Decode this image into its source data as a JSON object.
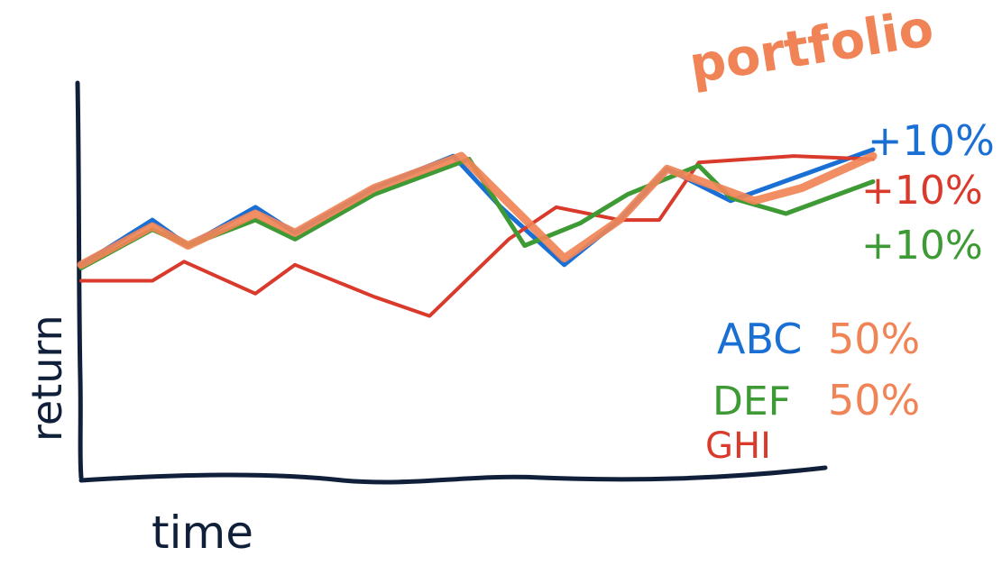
{
  "chart_data": {
    "type": "line",
    "title": "",
    "xlabel": "time",
    "ylabel": "return",
    "xlim": [
      0,
      100
    ],
    "ylim": [
      0,
      100
    ],
    "grid": false,
    "portfolio_label": "portfolio",
    "series": [
      {
        "name": "ABC",
        "color": "#1a6fd4",
        "x": [
          0,
          9,
          13.5,
          22,
          27,
          37,
          47,
          53,
          61,
          68,
          74,
          82,
          91,
          100
        ],
        "y": [
          44,
          58,
          50,
          62,
          54,
          68,
          78,
          62,
          44,
          58,
          74,
          64,
          72,
          80
        ],
        "end_label": "+10%"
      },
      {
        "name": "GHI",
        "color": "#d93a2b",
        "x": [
          0,
          9,
          13,
          22,
          27,
          37,
          44,
          54,
          60,
          68,
          73,
          78,
          90,
          100
        ],
        "y": [
          39,
          39,
          45,
          35,
          44,
          34,
          28,
          52,
          62,
          58,
          58,
          76,
          78,
          77
        ],
        "end_label": "+10%"
      },
      {
        "name": "DEF",
        "color": "#3d9a35",
        "x": [
          0,
          9,
          13.5,
          22,
          27,
          37,
          49,
          56,
          63,
          69,
          78,
          82,
          89,
          100
        ],
        "y": [
          43,
          55,
          50,
          58,
          52,
          66,
          77,
          50,
          57,
          66,
          75,
          65,
          60,
          70
        ],
        "end_label": "+10%"
      },
      {
        "name": "portfolio",
        "color": "#f08456",
        "x": [
          0,
          9,
          13.5,
          22,
          27,
          37,
          48,
          61,
          68,
          74,
          85,
          91,
          100
        ],
        "y": [
          44,
          56,
          50,
          60,
          54,
          68,
          78,
          46,
          58,
          74,
          64,
          68,
          78
        ]
      }
    ],
    "legend": [
      {
        "name": "ABC",
        "weight": "50%"
      },
      {
        "name": "DEF",
        "weight": "50%"
      },
      {
        "name": "GHI",
        "weight": ""
      }
    ],
    "legend_placement": "right"
  }
}
